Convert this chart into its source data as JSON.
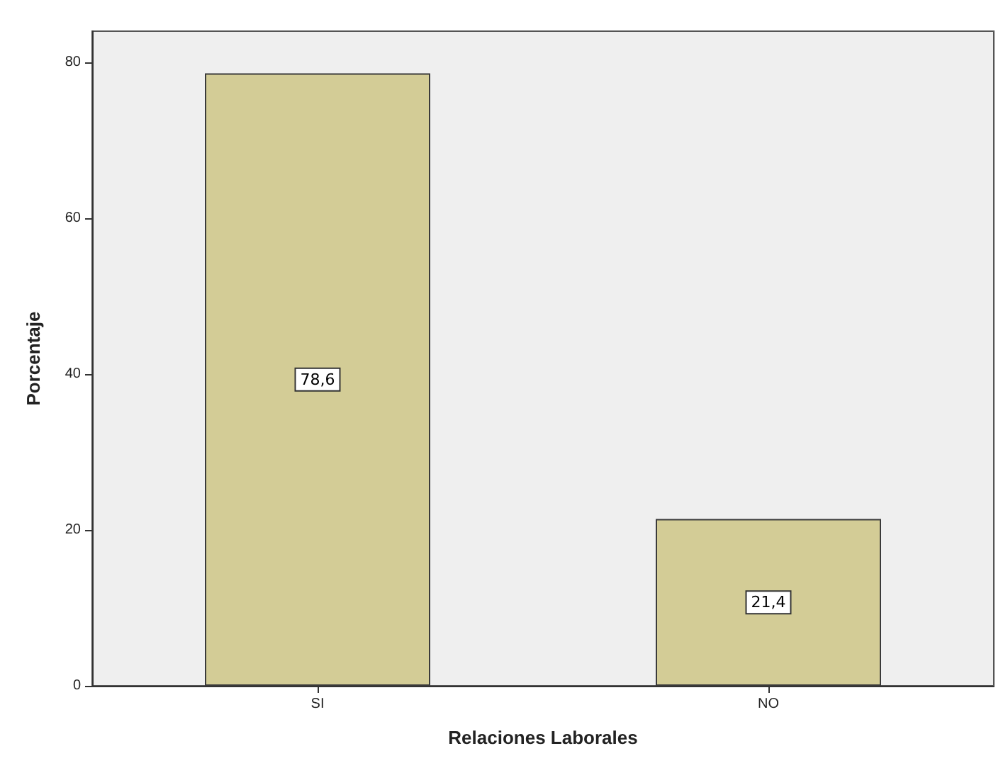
{
  "chart_data": {
    "type": "bar",
    "xlabel": "Relaciones Laborales",
    "ylabel": "Porcentaje",
    "categories": [
      "SI",
      "NO"
    ],
    "values": [
      78.6,
      21.4
    ],
    "value_labels": [
      "78,6",
      "21,4"
    ],
    "color": "#d3cc96",
    "ylim": [
      0,
      84
    ],
    "yticks": [
      0,
      20,
      40,
      60,
      80
    ],
    "grid": false
  }
}
